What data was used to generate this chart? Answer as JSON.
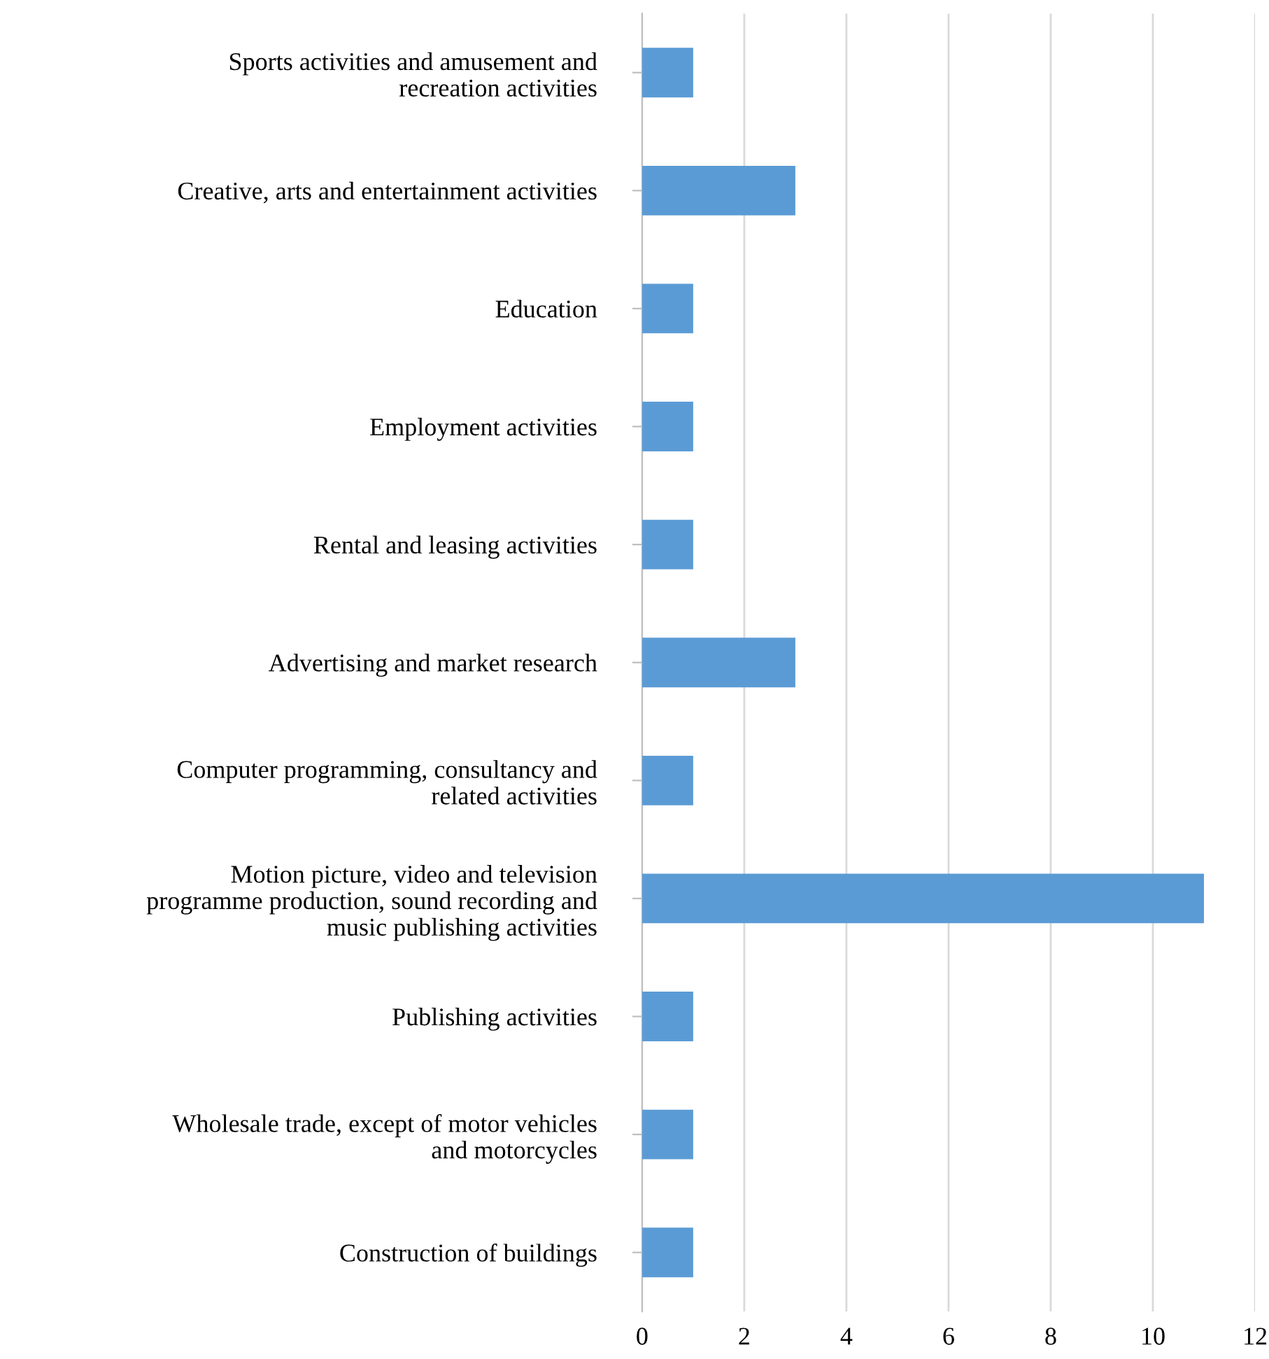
{
  "chart_data": {
    "type": "bar",
    "orientation": "horizontal",
    "categories": [
      "Sports activities and amusement and recreation activities",
      "Creative, arts and entertainment activities",
      "Education",
      "Employment activities",
      "Rental and leasing activities",
      "Advertising and market research",
      "Computer programming, consultancy and related activities",
      "Motion picture, video and television programme production, sound recording and music publishing activities",
      "Publishing activities",
      "Wholesale trade, except of motor vehicles and motorcycles",
      "Construction of buildings"
    ],
    "values": [
      1,
      3,
      1,
      1,
      1,
      3,
      1,
      11,
      1,
      1,
      1
    ],
    "color": "#5b9bd5",
    "xlim": [
      0,
      12
    ],
    "xticks": [
      0,
      2,
      4,
      6,
      8,
      10,
      12
    ],
    "grid": "x",
    "legend": false
  }
}
